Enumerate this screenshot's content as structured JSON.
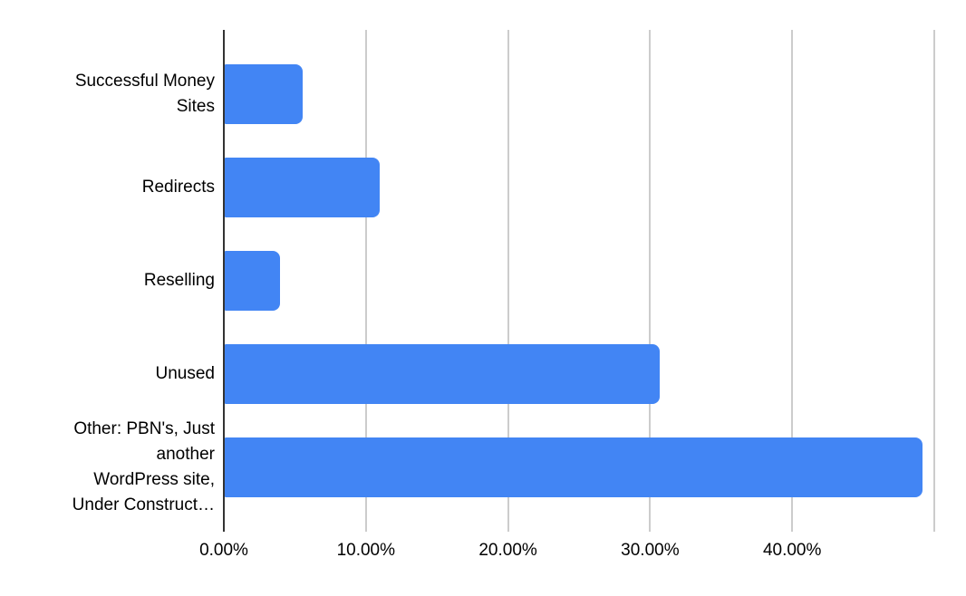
{
  "chart_data": {
    "type": "bar",
    "orientation": "horizontal",
    "title": "",
    "xlabel": "",
    "ylabel": "",
    "categories": [
      "Successful Money Sites",
      "Redirects",
      "Reselling",
      "Unused",
      "Other: PBN's, Just another WordPress site, Under Construct…"
    ],
    "category_label_lines": [
      [
        "Successful Money",
        "Sites"
      ],
      [
        "Redirects"
      ],
      [
        "Reselling"
      ],
      [
        "Unused"
      ],
      [
        "Other: PBN's, Just",
        "another",
        "WordPress site,",
        "Under Construct…"
      ]
    ],
    "values": [
      5.5,
      10.9,
      3.9,
      30.6,
      49.1
    ],
    "value_unit": "%",
    "xlim": [
      0,
      50
    ],
    "x_tick_values": [
      0,
      10,
      20,
      30,
      40
    ],
    "x_tick_labels": [
      "0.00%",
      "10.00%",
      "20.00%",
      "30.00%",
      "40.00%"
    ],
    "gridline_values": [
      10,
      20,
      30,
      40,
      50
    ],
    "grid": true,
    "legend": false,
    "colors": {
      "bar": "#4285f4",
      "gridline": "#cccccc",
      "axis": "#333333",
      "text": "#000000",
      "background": "#ffffff"
    }
  }
}
